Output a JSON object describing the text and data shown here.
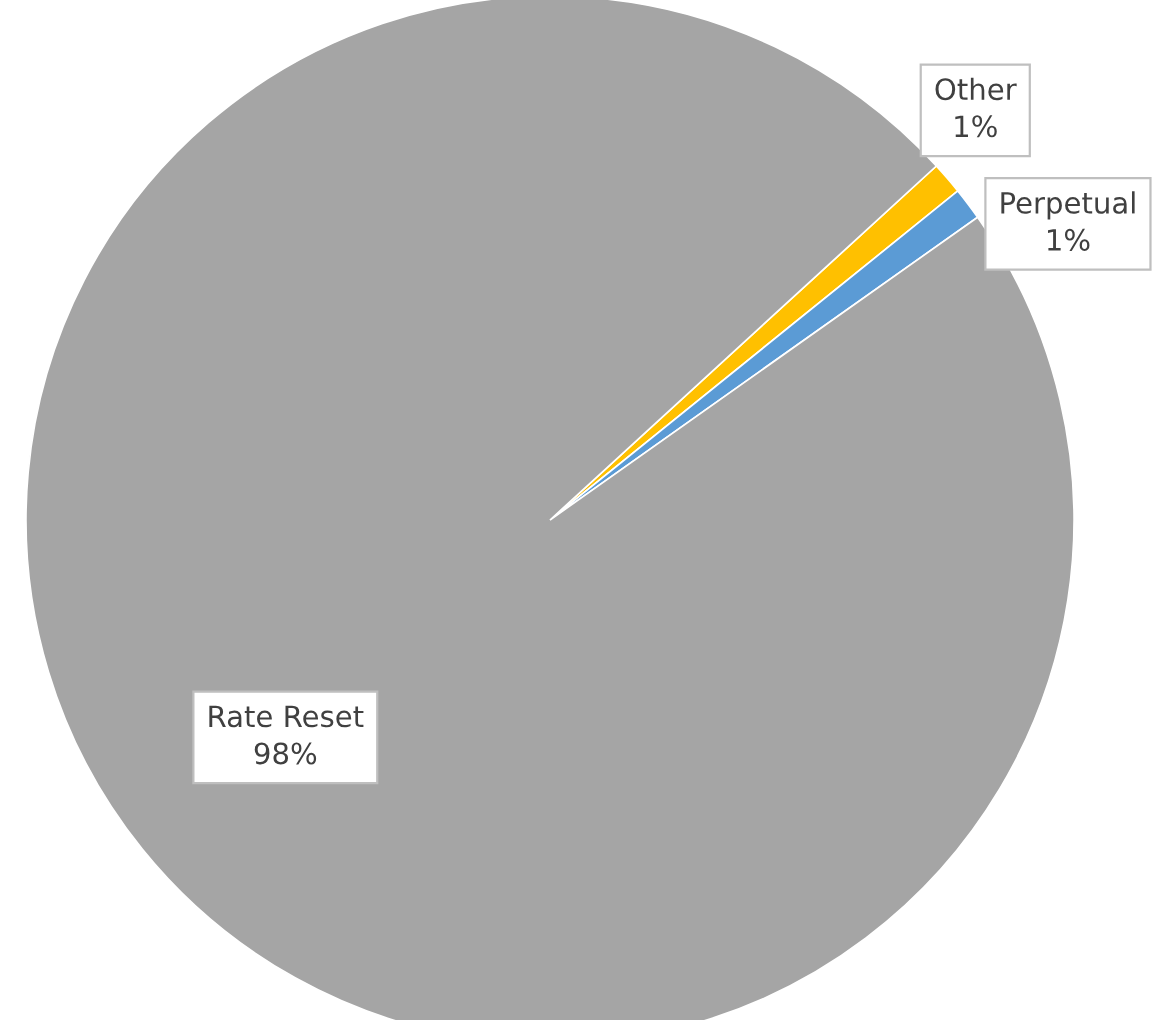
{
  "chart_data": {
    "type": "pie",
    "categories": [
      "Other",
      "Perpetual",
      "Rate Reset"
    ],
    "values": [
      1,
      1,
      98
    ],
    "value_labels": [
      "1%",
      "1%",
      "98%"
    ],
    "colors": [
      "#ffc000",
      "#5b9bd5",
      "#a5a5a5"
    ],
    "legend": false
  }
}
